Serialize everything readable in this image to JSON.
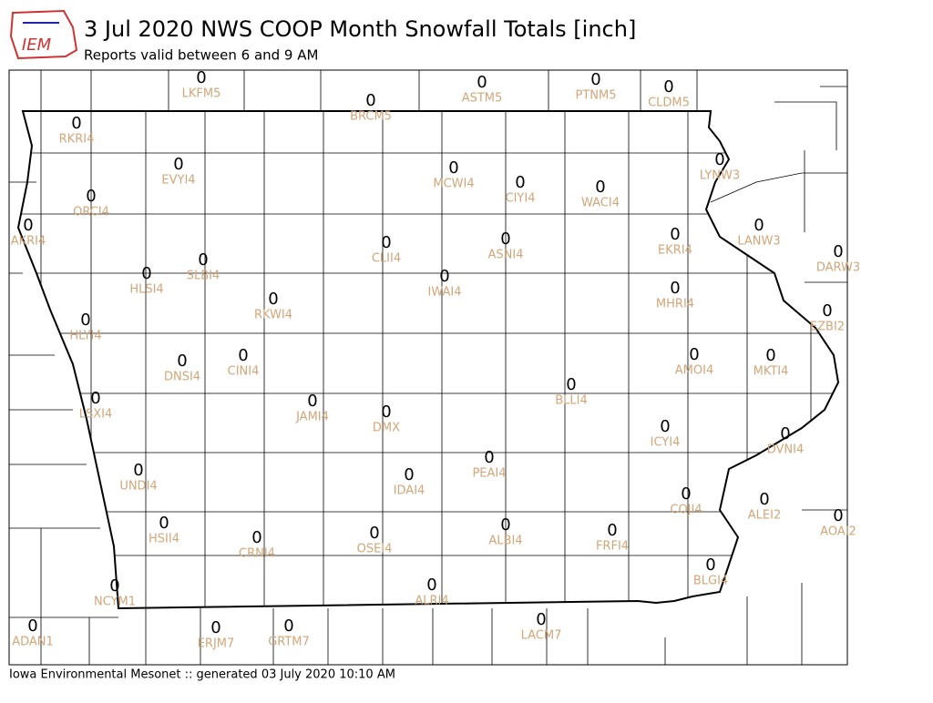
{
  "header": {
    "title": "3 Jul 2020 NWS COOP Month Snowfall Totals [inch]",
    "subtitle": "Reports valid between 6 and 9 AM"
  },
  "logo": "IEM",
  "footer": "Iowa Environmental Mesonet :: generated 03 July 2020 10:10 AM",
  "stations": [
    {
      "id": "LKFM5",
      "value": 0
    },
    {
      "id": "BRCM5",
      "value": 0
    },
    {
      "id": "ASTM5",
      "value": 0
    },
    {
      "id": "PTNM5",
      "value": 0
    },
    {
      "id": "CLDM5",
      "value": 0
    },
    {
      "id": "RKRI4",
      "value": 0
    },
    {
      "id": "EVYI4",
      "value": 0
    },
    {
      "id": "MCWI4",
      "value": 0
    },
    {
      "id": "CIYI4",
      "value": 0
    },
    {
      "id": "WACI4",
      "value": 0
    },
    {
      "id": "LYNW3",
      "value": 0
    },
    {
      "id": "ORCI4",
      "value": 0
    },
    {
      "id": "AKRI4",
      "value": 0
    },
    {
      "id": "LANW3",
      "value": 0
    },
    {
      "id": "EKRI4",
      "value": 0
    },
    {
      "id": "ASNI4",
      "value": 0
    },
    {
      "id": "CLII4",
      "value": 0
    },
    {
      "id": "DARW3",
      "value": 0
    },
    {
      "id": "SLBI4",
      "value": 0
    },
    {
      "id": "HLSI4",
      "value": 0
    },
    {
      "id": "IWAI4",
      "value": 0
    },
    {
      "id": "MHRI4",
      "value": 0
    },
    {
      "id": "RKWI4",
      "value": 0
    },
    {
      "id": "EZBI2",
      "value": 0
    },
    {
      "id": "HLYI4",
      "value": 0
    },
    {
      "id": "AMOI4",
      "value": 0
    },
    {
      "id": "MKTI4",
      "value": 0
    },
    {
      "id": "DNSI4",
      "value": 0
    },
    {
      "id": "CINI4",
      "value": 0
    },
    {
      "id": "BLLI4",
      "value": 0
    },
    {
      "id": "JAMI4",
      "value": 0
    },
    {
      "id": "DMX",
      "value": 0
    },
    {
      "id": "LSXI4",
      "value": 0
    },
    {
      "id": "ICYI4",
      "value": 0
    },
    {
      "id": "DVNI4",
      "value": 0
    },
    {
      "id": "PEAI4",
      "value": 0
    },
    {
      "id": "UNDI4",
      "value": 0
    },
    {
      "id": "IDAI4",
      "value": 0
    },
    {
      "id": "COJI4",
      "value": 0
    },
    {
      "id": "ALEI2",
      "value": 0
    },
    {
      "id": "AOAI2",
      "value": 0
    },
    {
      "id": "HSII4",
      "value": 0
    },
    {
      "id": "ALBI4",
      "value": 0
    },
    {
      "id": "FRFI4",
      "value": 0
    },
    {
      "id": "CRNI4",
      "value": 0
    },
    {
      "id": "OSEI4",
      "value": 0
    },
    {
      "id": "BLGI4",
      "value": 0
    },
    {
      "id": "NCYM1",
      "value": 0
    },
    {
      "id": "ALRI4",
      "value": 0
    },
    {
      "id": "LACM7",
      "value": 0
    },
    {
      "id": "ADAN1",
      "value": 0
    },
    {
      "id": "ERJM7",
      "value": 0
    },
    {
      "id": "GRTM7",
      "value": 0
    }
  ]
}
